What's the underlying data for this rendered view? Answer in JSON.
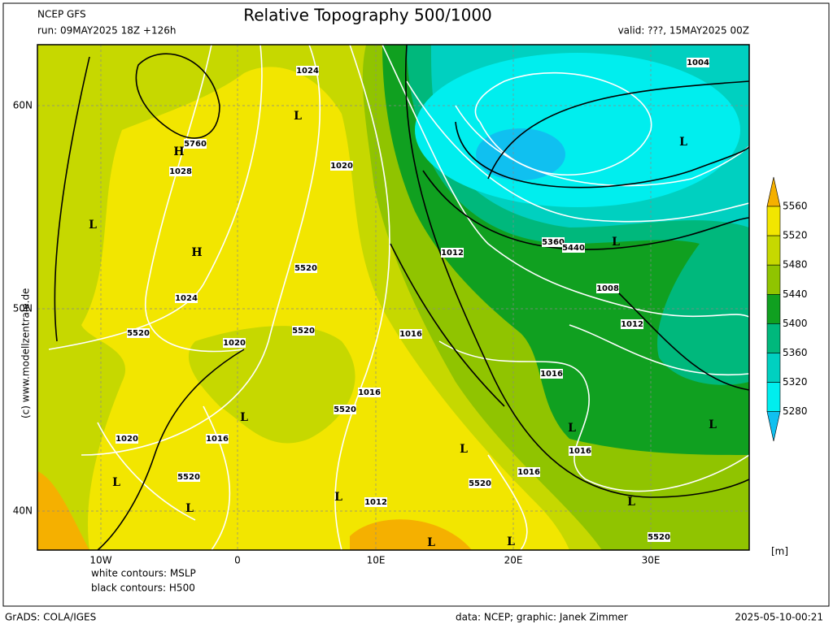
{
  "header": {
    "model": "NCEP GFS",
    "run": "run: 09MAY2025 18Z +126h",
    "title": "Relative Topography 500/1000",
    "valid": "valid: ???, 15MAY2025 00Z"
  },
  "axes": {
    "lat_labels": [
      "60N",
      "50N",
      "40N"
    ],
    "lon_labels": [
      "10W",
      "0",
      "10E",
      "20E",
      "30E"
    ]
  },
  "colorbar": {
    "ticks": [
      5560,
      5520,
      5480,
      5440,
      5400,
      5360,
      5320,
      5280
    ],
    "unit": "[m]",
    "colors": [
      "#f5b000",
      "#f2e600",
      "#c6d800",
      "#90c400",
      "#10a020",
      "#00b87c",
      "#00d0c0",
      "#00eeee",
      "#10c0f0"
    ]
  },
  "map_labels": [
    "1024",
    "L",
    "5760",
    "H",
    "1028",
    "1020",
    "L",
    "H",
    "5520",
    "1012",
    "5360",
    "5440",
    "L",
    "1008",
    "1024",
    "5520",
    "5520",
    "1020",
    "1016",
    "1012",
    "1016",
    "1016",
    "5520",
    "L",
    "L",
    "L",
    "1020",
    "1016",
    "L",
    "1016",
    "1016",
    "L",
    "5520",
    "5520",
    "L",
    "1012",
    "L",
    "L",
    "L",
    "L",
    "5520",
    "1004",
    "L"
  ],
  "legend_notes": [
    "white contours: MSLP",
    "black contours: H500"
  ],
  "watermark": "(c) www.modellzentrale.de",
  "footer": {
    "software": "GrADS: COLA/IGES",
    "credit": "data: NCEP; graphic: Janek Zimmer",
    "timestamp": "2025-05-10-00:21"
  }
}
